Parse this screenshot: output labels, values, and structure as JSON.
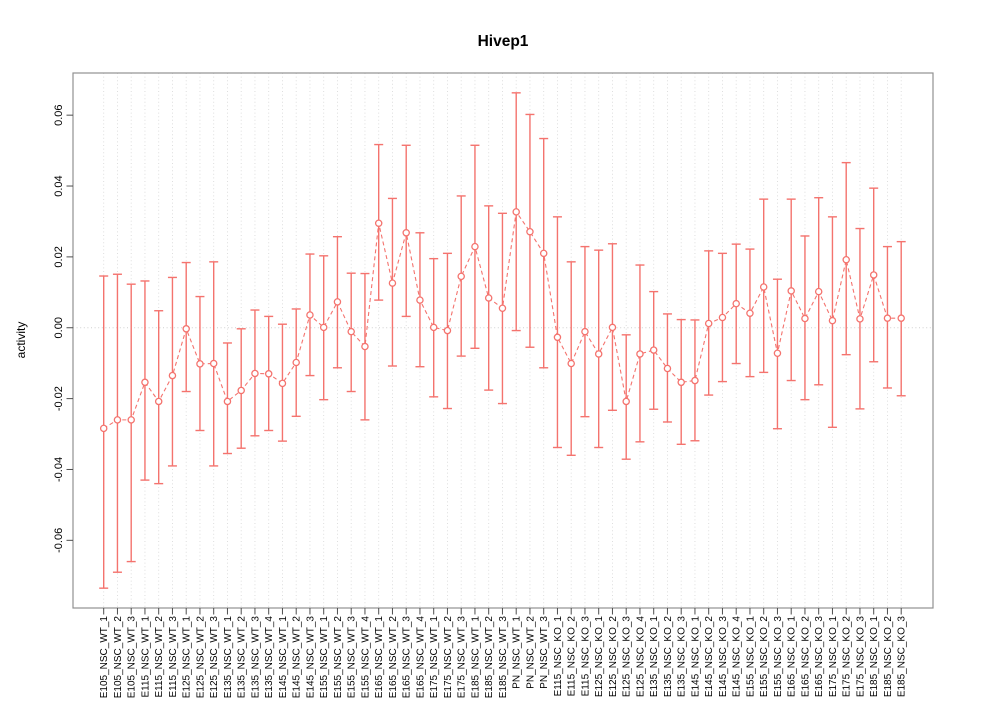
{
  "figure": {
    "title": "Hivep1",
    "ylabel": "activity"
  },
  "chart_data": {
    "type": "line",
    "subtype": "points-with-asymmetric-error-bars",
    "title": "Hivep1",
    "xlabel": "",
    "ylabel": "activity",
    "legend_position": "none",
    "grid": {
      "vertical_per_category": true,
      "horizontal_zero_line": true
    },
    "ylim": [
      -0.0791,
      0.0719
    ],
    "yticks": [
      -0.06,
      -0.04,
      -0.02,
      0.0,
      0.02,
      0.04,
      0.06
    ],
    "ytick_labels": [
      "-0.06",
      "-0.04",
      "-0.02",
      "0.00",
      "0.02",
      "0.04",
      "0.06"
    ],
    "categories": [
      "E105_NSC_WT_1",
      "E105_NSC_WT_2",
      "E105_NSC_WT_3",
      "E115_NSC_WT_1",
      "E115_NSC_WT_2",
      "E115_NSC_WT_3",
      "E125_NSC_WT_1",
      "E125_NSC_WT_2",
      "E125_NSC_WT_3",
      "E135_NSC_WT_1",
      "E135_NSC_WT_2",
      "E135_NSC_WT_3",
      "E135_NSC_WT_4",
      "E145_NSC_WT_1",
      "E145_NSC_WT_2",
      "E145_NSC_WT_3",
      "E155_NSC_WT_1",
      "E155_NSC_WT_2",
      "E155_NSC_WT_3",
      "E155_NSC_WT_4",
      "E165_NSC_WT_1",
      "E165_NSC_WT_2",
      "E165_NSC_WT_3",
      "E165_NSC_WT_4",
      "E175_NSC_WT_1",
      "E175_NSC_WT_2",
      "E175_NSC_WT_3",
      "E185_NSC_WT_1",
      "E185_NSC_WT_2",
      "E185_NSC_WT_3",
      "PN_NSC_WT_1",
      "PN_NSC_WT_2",
      "PN_NSC_WT_3",
      "E115_NSC_KO_1",
      "E115_NSC_KO_2",
      "E115_NSC_KO_3",
      "E125_NSC_KO_1",
      "E125_NSC_KO_2",
      "E125_NSC_KO_3",
      "E125_NSC_KO_4",
      "E135_NSC_KO_1",
      "E135_NSC_KO_2",
      "E135_NSC_KO_3",
      "E145_NSC_KO_1",
      "E145_NSC_KO_2",
      "E145_NSC_KO_3",
      "E145_NSC_KO_4",
      "E155_NSC_KO_1",
      "E155_NSC_KO_2",
      "E155_NSC_KO_3",
      "E165_NSC_KO_1",
      "E165_NSC_KO_2",
      "E165_NSC_KO_3",
      "E175_NSC_KO_1",
      "E175_NSC_KO_2",
      "E175_NSC_KO_3",
      "E185_NSC_KO_1",
      "E185_NSC_KO_2",
      "E185_NSC_KO_3"
    ],
    "series": [
      {
        "name": "activity",
        "marker": "open-circle",
        "line_style": "dashed",
        "values": [
          -0.0284,
          -0.026,
          -0.026,
          -0.0154,
          -0.0208,
          -0.0135,
          -0.0003,
          -0.0102,
          -0.0101,
          -0.0208,
          -0.0177,
          -0.0129,
          -0.013,
          -0.0157,
          -0.0098,
          0.0036,
          0.0001,
          0.0073,
          -0.0011,
          -0.0053,
          0.0295,
          0.0126,
          0.0268,
          0.0078,
          0.0001,
          -0.0008,
          0.0145,
          0.0229,
          0.0084,
          0.0055,
          0.0327,
          0.0271,
          0.021,
          -0.0027,
          -0.0101,
          -0.0011,
          -0.0074,
          0.0001,
          -0.0208,
          -0.0074,
          -0.0063,
          -0.0115,
          -0.0154,
          -0.0149,
          0.0012,
          0.0029,
          0.0068,
          0.0041,
          0.0115,
          -0.0072,
          0.0104,
          0.0026,
          0.0102,
          0.002,
          0.0192,
          0.0025,
          0.0149,
          0.0027,
          0.0027
        ],
        "err_high": [
          0.0146,
          0.0151,
          0.0123,
          0.0132,
          0.0048,
          0.0142,
          0.0184,
          0.0088,
          0.0186,
          -0.0043,
          -0.0003,
          0.005,
          0.0032,
          0.001,
          0.0053,
          0.0208,
          0.0203,
          0.0257,
          0.0154,
          0.0153,
          0.0517,
          0.0365,
          0.0515,
          0.0268,
          0.0195,
          0.021,
          0.0372,
          0.0515,
          0.0344,
          0.0323,
          0.0663,
          0.0602,
          0.0534,
          0.0313,
          0.0186,
          0.0229,
          0.0219,
          0.0237,
          -0.002,
          0.0177,
          0.0102,
          0.0039,
          0.0023,
          0.0022,
          0.0217,
          0.021,
          0.0236,
          0.0222,
          0.0363,
          0.0137,
          0.0363,
          0.0259,
          0.0367,
          0.0313,
          0.0466,
          0.028,
          0.0394,
          0.0229,
          0.0243
        ],
        "err_low": [
          -0.0735,
          -0.069,
          -0.066,
          -0.043,
          -0.044,
          -0.039,
          -0.018,
          -0.029,
          -0.039,
          -0.0355,
          -0.034,
          -0.0305,
          -0.029,
          -0.032,
          -0.025,
          -0.0135,
          -0.0203,
          -0.0113,
          -0.018,
          -0.026,
          0.0078,
          -0.0108,
          0.0032,
          -0.011,
          -0.0195,
          -0.0228,
          -0.008,
          -0.0058,
          -0.0176,
          -0.0214,
          -0.0008,
          -0.0055,
          -0.0113,
          -0.0338,
          -0.036,
          -0.0251,
          -0.0338,
          -0.0233,
          -0.0371,
          -0.0322,
          -0.023,
          -0.0266,
          -0.0329,
          -0.0319,
          -0.019,
          -0.0152,
          -0.0101,
          -0.0138,
          -0.0126,
          -0.0285,
          -0.0149,
          -0.0203,
          -0.0161,
          -0.0281,
          -0.0076,
          -0.0229,
          -0.0096,
          -0.017,
          -0.0192
        ]
      }
    ],
    "colors": {
      "series": "#f4736e",
      "grid": "#dadada",
      "zero_line": "#cfcfcf",
      "frame": "#919191",
      "tick": "#4d4d4d",
      "text": "#000000"
    }
  }
}
